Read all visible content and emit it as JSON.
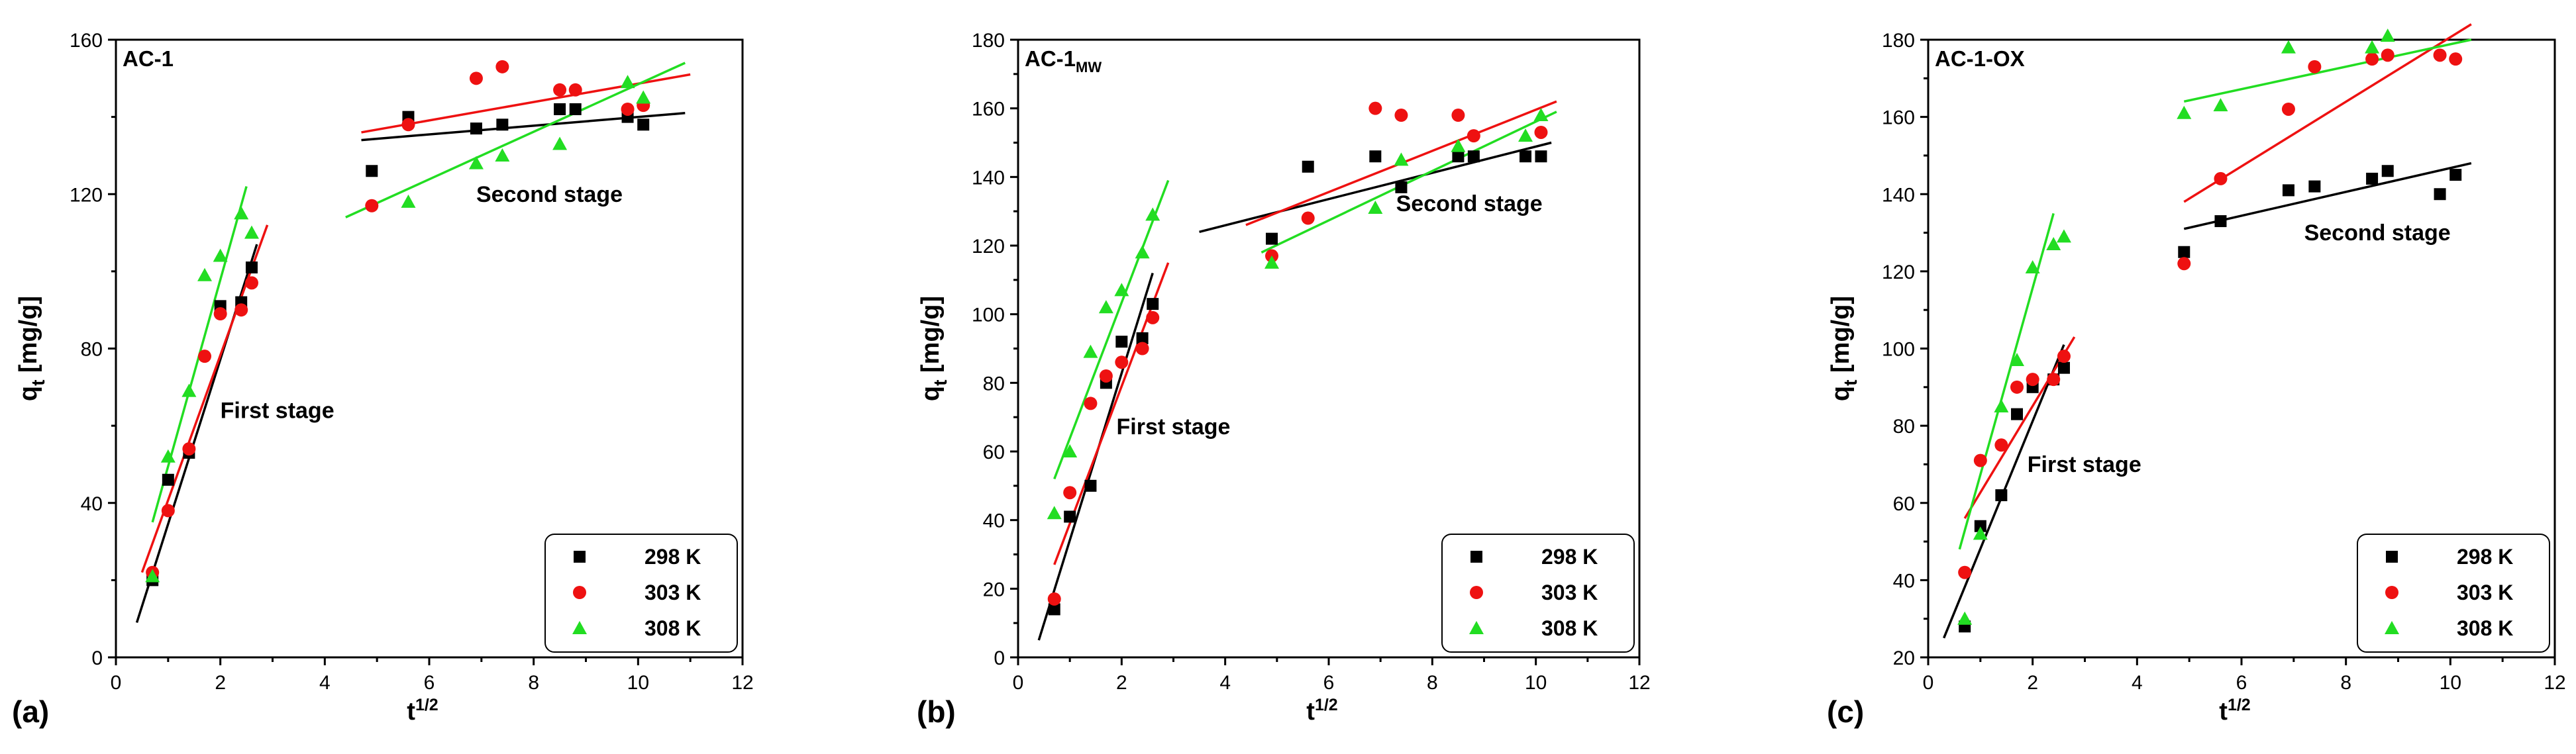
{
  "figure": {
    "series_styles": [
      {
        "name": "298 K",
        "color": "#000000",
        "marker": "square"
      },
      {
        "name": "303 K",
        "color": "#ee1111",
        "marker": "circle"
      },
      {
        "name": "308 K",
        "color": "#22dd22",
        "marker": "triangle"
      }
    ]
  },
  "chart_data": [
    {
      "type": "scatter",
      "panel_letter": "(a)",
      "title": "AC-1",
      "title_sub": "",
      "xlabel_base": "t",
      "xlabel_sup": "1/2",
      "ylabel_base": "q",
      "ylabel_sub": "t",
      "ylabel_rest": " [mg/g]",
      "xlim": [
        0,
        12
      ],
      "ylim": [
        0,
        160
      ],
      "xticks": [
        0,
        2,
        4,
        6,
        8,
        10,
        12
      ],
      "yticks": [
        0,
        40,
        80,
        120,
        160
      ],
      "annotations": [
        {
          "text": "First stage",
          "x": 2.0,
          "y": 62
        },
        {
          "text": "Second stage",
          "x": 6.9,
          "y": 118
        }
      ],
      "legend": {
        "position": "bottom-right",
        "entries": [
          "298 K",
          "303 K",
          "308 K"
        ]
      },
      "series": [
        {
          "name": "298 K",
          "x": [
            0.7,
            1.0,
            1.4,
            2.0,
            2.4,
            2.6,
            4.9,
            5.6,
            6.9,
            7.4,
            8.5,
            8.8,
            9.8,
            10.1
          ],
          "y": [
            20,
            46,
            53,
            91,
            92,
            101,
            126,
            140,
            137,
            138,
            142,
            142,
            140,
            138
          ],
          "fits": [
            {
              "x": [
                0.4,
                2.7
              ],
              "y": [
                9,
                107
              ]
            },
            {
              "x": [
                4.7,
                10.9
              ],
              "y": [
                134,
                141
              ]
            }
          ]
        },
        {
          "name": "303 K",
          "x": [
            0.7,
            1.0,
            1.4,
            1.7,
            2.0,
            2.4,
            2.6,
            4.9,
            5.6,
            6.9,
            7.4,
            8.5,
            8.8,
            9.8,
            10.1
          ],
          "y": [
            22,
            38,
            54,
            78,
            89,
            90,
            97,
            117,
            138,
            150,
            153,
            147,
            147,
            142,
            143
          ],
          "fits": [
            {
              "x": [
                0.5,
                2.9
              ],
              "y": [
                22,
                112
              ]
            },
            {
              "x": [
                4.7,
                11.0
              ],
              "y": [
                136,
                151
              ]
            }
          ]
        },
        {
          "name": "308 K",
          "x": [
            0.7,
            1.0,
            1.4,
            1.7,
            2.0,
            2.4,
            2.6,
            5.6,
            6.9,
            7.4,
            8.5,
            9.8,
            10.1
          ],
          "y": [
            21,
            52,
            69,
            99,
            104,
            115,
            110,
            118,
            128,
            130,
            133,
            149,
            145
          ],
          "fits": [
            {
              "x": [
                0.7,
                2.5
              ],
              "y": [
                35,
                122
              ]
            },
            {
              "x": [
                4.4,
                10.9
              ],
              "y": [
                114,
                154
              ]
            }
          ]
        }
      ]
    },
    {
      "type": "scatter",
      "panel_letter": "(b)",
      "title": "AC-1",
      "title_sub": "MW",
      "xlabel_base": "t",
      "xlabel_sup": "1/2",
      "ylabel_base": "q",
      "ylabel_sub": "t",
      "ylabel_rest": " [mg/g]",
      "xlim": [
        0,
        12
      ],
      "ylim": [
        0,
        180
      ],
      "xticks": [
        0,
        2,
        4,
        6,
        8,
        10,
        12
      ],
      "yticks": [
        0,
        20,
        40,
        60,
        80,
        100,
        120,
        140,
        160,
        180
      ],
      "annotations": [
        {
          "text": "First stage",
          "x": 1.9,
          "y": 65
        },
        {
          "text": "Second stage",
          "x": 7.3,
          "y": 130
        }
      ],
      "legend": {
        "position": "bottom-right",
        "entries": [
          "298 K",
          "303 K",
          "308 K"
        ]
      },
      "series": [
        {
          "name": "298 K",
          "x": [
            0.7,
            1.0,
            1.4,
            1.7,
            2.0,
            2.4,
            2.6,
            4.9,
            5.6,
            6.9,
            7.4,
            8.5,
            8.8,
            9.8,
            10.1
          ],
          "y": [
            14,
            41,
            50,
            80,
            92,
            93,
            103,
            122,
            143,
            146,
            137,
            146,
            146,
            146,
            146
          ],
          "fits": [
            {
              "x": [
                0.4,
                2.6
              ],
              "y": [
                5,
                112
              ]
            },
            {
              "x": [
                3.5,
                10.3
              ],
              "y": [
                124,
                150
              ]
            }
          ]
        },
        {
          "name": "303 K",
          "x": [
            0.7,
            1.0,
            1.4,
            1.7,
            2.0,
            2.4,
            2.6,
            4.9,
            5.6,
            6.9,
            7.4,
            8.5,
            8.8,
            10.1
          ],
          "y": [
            17,
            48,
            74,
            82,
            86,
            90,
            99,
            117,
            128,
            160,
            158,
            158,
            152,
            153
          ],
          "fits": [
            {
              "x": [
                0.7,
                2.9
              ],
              "y": [
                27,
                115
              ]
            },
            {
              "x": [
                4.4,
                10.4
              ],
              "y": [
                126,
                162
              ]
            }
          ]
        },
        {
          "name": "308 K",
          "x": [
            0.7,
            1.0,
            1.4,
            1.7,
            2.0,
            2.4,
            2.6,
            4.9,
            6.9,
            7.4,
            8.5,
            9.8,
            10.1
          ],
          "y": [
            42,
            60,
            89,
            102,
            107,
            118,
            129,
            115,
            131,
            145,
            149,
            152,
            158
          ],
          "fits": [
            {
              "x": [
                0.7,
                2.9
              ],
              "y": [
                52,
                139
              ]
            },
            {
              "x": [
                4.7,
                10.4
              ],
              "y": [
                118,
                159
              ]
            }
          ]
        }
      ]
    },
    {
      "type": "scatter",
      "panel_letter": "(c)",
      "title": "AC-1-OX",
      "title_sub": "",
      "xlabel_base": "t",
      "xlabel_sup": "1/2",
      "ylabel_base": "q",
      "ylabel_sub": "t",
      "ylabel_rest": " [mg/g]",
      "xlim": [
        0,
        12
      ],
      "ylim": [
        20,
        180
      ],
      "xticks": [
        0,
        2,
        4,
        6,
        8,
        10,
        12
      ],
      "yticks": [
        20,
        40,
        60,
        80,
        100,
        120,
        140,
        160,
        180
      ],
      "annotations": [
        {
          "text": "First stage",
          "x": 1.9,
          "y": 68
        },
        {
          "text": "Second stage",
          "x": 7.2,
          "y": 128
        }
      ],
      "legend": {
        "position": "bottom-right",
        "entries": [
          "298 K",
          "303 K",
          "308 K"
        ]
      },
      "series": [
        {
          "name": "298 K",
          "x": [
            0.7,
            1.0,
            1.4,
            1.7,
            2.0,
            2.4,
            2.6,
            4.9,
            5.6,
            6.9,
            7.4,
            8.5,
            8.8,
            9.8,
            10.1
          ],
          "y": [
            28,
            54,
            62,
            83,
            90,
            92,
            95,
            125,
            133,
            141,
            142,
            144,
            146,
            140,
            145
          ],
          "fits": [
            {
              "x": [
                0.3,
                2.6
              ],
              "y": [
                25,
                101
              ]
            },
            {
              "x": [
                4.9,
                10.4
              ],
              "y": [
                131,
                148
              ]
            }
          ]
        },
        {
          "name": "303 K",
          "x": [
            0.7,
            1.0,
            1.4,
            1.7,
            2.0,
            2.4,
            2.6,
            4.9,
            5.6,
            6.9,
            7.4,
            8.5,
            8.8,
            9.8,
            10.1
          ],
          "y": [
            42,
            71,
            75,
            90,
            92,
            92,
            98,
            122,
            144,
            162,
            173,
            175,
            176,
            176,
            175
          ],
          "fits": [
            {
              "x": [
                0.7,
                2.8
              ],
              "y": [
                56,
                103
              ]
            },
            {
              "x": [
                4.9,
                10.4
              ],
              "y": [
                138,
                184
              ]
            }
          ]
        },
        {
          "name": "308 K",
          "x": [
            0.7,
            1.0,
            1.4,
            1.7,
            2.0,
            2.4,
            2.6,
            4.9,
            5.6,
            6.9,
            8.5,
            8.8
          ],
          "y": [
            30,
            52,
            85,
            97,
            121,
            127,
            129,
            161,
            163,
            178,
            178,
            181
          ],
          "fits": [
            {
              "x": [
                0.6,
                2.4
              ],
              "y": [
                48,
                135
              ]
            },
            {
              "x": [
                4.9,
                10.4
              ],
              "y": [
                164,
                180
              ]
            }
          ]
        }
      ]
    }
  ]
}
